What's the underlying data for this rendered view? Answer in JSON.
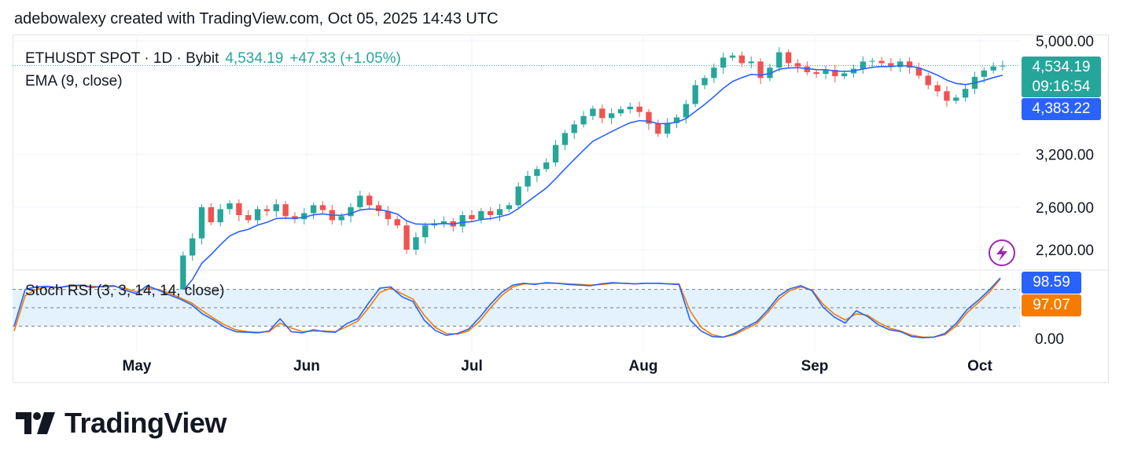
{
  "credit": "adebowalexy created with TradingView.com, Oct 05, 2025 14:43 UTC",
  "brand": "TradingView",
  "colors": {
    "up": "#26a69a",
    "down": "#ef5350",
    "ema": "#2962ff",
    "stoch_k": "#2962ff",
    "stoch_d": "#f57c00",
    "stoch_band": "#e3f2fd"
  },
  "legend": {
    "symbol": "ETHUSDT SPOT · 1D · Bybit",
    "price": "4,534.19",
    "change": "+47.33 (+1.05%)",
    "ema_label": "EMA (9, close)"
  },
  "stoch_label": "Stoch RSI (3, 3, 14, 14, close)",
  "tags": {
    "price": "4,534.19",
    "countdown": "09:16:54",
    "ema": "4,383.22",
    "k": "98.59",
    "d": "97.07"
  },
  "icons": {
    "replay": "lightning-icon"
  },
  "chart_data": [
    {
      "type": "candlestick",
      "scale": "log",
      "title": "ETHUSDT SPOT · 1D · Bybit",
      "price_axis_ticks": [
        "5,000.00",
        "3,200.00",
        "2,600.00",
        "2,200.00"
      ],
      "month_labels": [
        "May",
        "Jun",
        "Jul",
        "Aug",
        "Sep",
        "Oct"
      ],
      "closes": [
        1800,
        2150,
        2300,
        2600,
        2450,
        2580,
        2640,
        2520,
        2470,
        2580,
        2560,
        2630,
        2510,
        2480,
        2540,
        2620,
        2570,
        2470,
        2510,
        2600,
        2720,
        2620,
        2560,
        2480,
        2420,
        2200,
        2310,
        2420,
        2440,
        2460,
        2410,
        2520,
        2480,
        2560,
        2520,
        2580,
        2620,
        2820,
        2940,
        3020,
        3100,
        3320,
        3480,
        3600,
        3720,
        3830,
        3690,
        3760,
        3820,
        3860,
        3780,
        3610,
        3470,
        3620,
        3700,
        3900,
        4200,
        4320,
        4500,
        4680,
        4720,
        4580,
        4610,
        4320,
        4500,
        4780,
        4580,
        4520,
        4420,
        4390,
        4460,
        4350,
        4400,
        4480,
        4610,
        4620,
        4580,
        4510,
        4610,
        4500,
        4360,
        4200,
        4100,
        3950,
        4000,
        4140,
        4340,
        4450,
        4520,
        4534.19
      ],
      "ema_last": 4383.22,
      "last_price": 4534.19
    },
    {
      "type": "line",
      "title": "Stoch RSI (3, 3, 14, 14, close)",
      "axis_ticks": [
        "0.00"
      ],
      "series": [
        {
          "name": "K",
          "last": 98.59,
          "values": [
            20,
            80,
            84,
            85,
            83,
            86,
            87,
            83,
            85,
            86,
            79,
            73,
            86,
            79,
            71,
            64,
            55,
            40,
            30,
            18,
            11,
            10,
            9,
            12,
            32,
            11,
            9,
            14,
            11,
            10,
            24,
            32,
            58,
            82,
            84,
            68,
            60,
            30,
            13,
            5,
            8,
            15,
            34,
            56,
            75,
            87,
            90,
            88,
            91,
            90,
            88,
            87,
            86,
            89,
            91,
            90,
            89,
            90,
            90,
            89,
            88,
            30,
            12,
            3,
            2,
            8,
            18,
            27,
            46,
            69,
            81,
            86,
            78,
            51,
            35,
            25,
            45,
            36,
            22,
            14,
            11,
            3,
            1,
            2,
            8,
            24,
            47,
            62,
            79,
            98.59
          ]
        },
        {
          "name": "D",
          "last": 97.07,
          "values": [
            12,
            70,
            80,
            84,
            83,
            85,
            86,
            85,
            84,
            85,
            82,
            76,
            81,
            80,
            74,
            66,
            58,
            45,
            33,
            22,
            14,
            11,
            10,
            11,
            25,
            17,
            11,
            12,
            12,
            11,
            19,
            28,
            50,
            75,
            82,
            73,
            64,
            38,
            18,
            8,
            7,
            12,
            28,
            50,
            70,
            84,
            89,
            89,
            90,
            90,
            89,
            88,
            87,
            88,
            90,
            90,
            89,
            90,
            90,
            89,
            89,
            45,
            18,
            6,
            2,
            6,
            15,
            24,
            42,
            64,
            78,
            84,
            79,
            56,
            40,
            30,
            40,
            38,
            26,
            17,
            12,
            5,
            2,
            2,
            6,
            20,
            42,
            58,
            75,
            97.07
          ]
        }
      ]
    }
  ]
}
